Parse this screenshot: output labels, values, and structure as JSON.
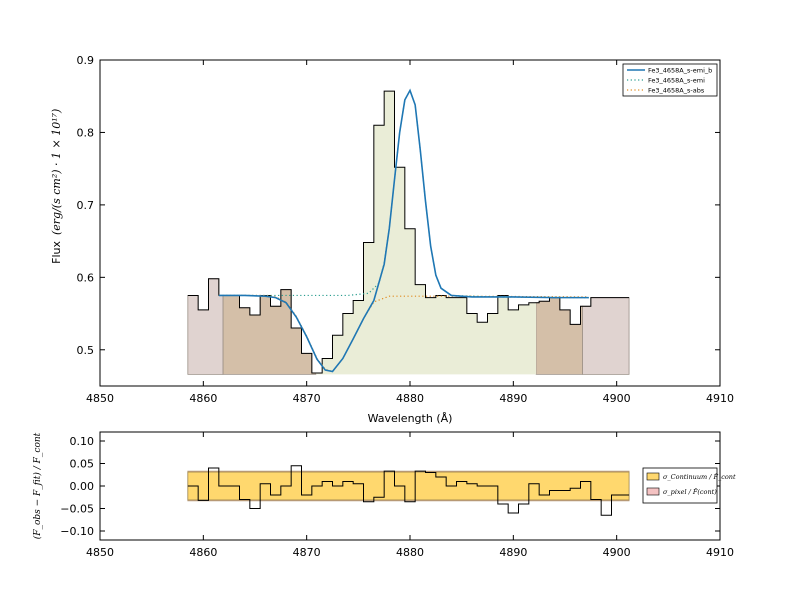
{
  "chart_data": [
    {
      "type": "line",
      "xlabel": "Wavelength (Å)",
      "ylabel": "Flux",
      "ylabel_unit": "(erg/(s cm²) · 1 × 10¹⁷)",
      "xlim": [
        4850,
        4910
      ],
      "ylim": [
        0.45,
        0.9
      ],
      "xticks": [
        "4850",
        "4860",
        "4870",
        "4880",
        "4890",
        "4900",
        "4910"
      ],
      "yticks": [
        "0.5",
        "0.6",
        "0.7",
        "0.8",
        "0.9"
      ],
      "grid": false,
      "legend": {
        "position": "top-right",
        "entries": [
          "Fe3_4658A_s-emi_b",
          "Fe3_4658A_s-emi",
          "Fe3_4658A_s-abs"
        ]
      },
      "continuum_regions": [
        {
          "x0": 4858.5,
          "x1": 4861.9,
          "color": "#e0d3d0"
        },
        {
          "x0": 4861.9,
          "x1": 4870.9,
          "color": "#d4bfa8"
        },
        {
          "x0": 4870.9,
          "x1": 4892.2,
          "color": "#eaedd7"
        },
        {
          "x0": 4892.2,
          "x1": 4896.7,
          "color": "#d4bfa8"
        },
        {
          "x0": 4896.7,
          "x1": 4901.2,
          "color": "#e0d3d0"
        }
      ],
      "observed_step": {
        "edges": [
          4858.5,
          4859.5,
          4860.5,
          4861.5,
          4862.5,
          4863.5,
          4864.5,
          4865.5,
          4866.5,
          4867.5,
          4868.5,
          4869.5,
          4870.5,
          4871.5,
          4872.5,
          4873.5,
          4874.5,
          4875.5,
          4876.5,
          4877.5,
          4878.5,
          4879.5,
          4880.5,
          4881.5,
          4882.5,
          4883.5,
          4884.5,
          4885.5,
          4886.5,
          4887.5,
          4888.5,
          4889.5,
          4890.5,
          4891.5,
          4892.5,
          4893.5,
          4894.5,
          4895.5,
          4896.5,
          4897.5,
          4898.5,
          4899.5,
          4900.5,
          4901.2
        ],
        "values": [
          0.575,
          0.555,
          0.598,
          0.575,
          0.575,
          0.558,
          0.548,
          0.575,
          0.56,
          0.583,
          0.53,
          0.495,
          0.468,
          0.488,
          0.52,
          0.55,
          0.568,
          0.648,
          0.81,
          0.857,
          0.752,
          0.667,
          0.59,
          0.572,
          0.575,
          0.572,
          0.572,
          0.55,
          0.538,
          0.55,
          0.575,
          0.555,
          0.562,
          0.565,
          0.567,
          0.572,
          0.555,
          0.535,
          0.56,
          0.572,
          0.572,
          0.572,
          0.572
        ]
      },
      "series": [
        {
          "name": "Fe3_4658A_s-emi_b",
          "style": "solid",
          "color": "#1f77b4",
          "x": [
            4861.5,
            4864,
            4866,
            4867,
            4868,
            4869,
            4870,
            4871,
            4871.8,
            4872.5,
            4873.5,
            4874.5,
            4875.5,
            4876.5,
            4877.5,
            4878,
            4878.5,
            4879,
            4879.5,
            4880,
            4880.5,
            4881,
            4881.5,
            4882,
            4882.5,
            4883,
            4884,
            4886,
            4890,
            4894,
            4897.3
          ],
          "y": [
            0.575,
            0.575,
            0.574,
            0.572,
            0.565,
            0.545,
            0.518,
            0.487,
            0.472,
            0.47,
            0.488,
            0.515,
            0.543,
            0.568,
            0.618,
            0.668,
            0.735,
            0.8,
            0.845,
            0.858,
            0.838,
            0.775,
            0.705,
            0.643,
            0.603,
            0.585,
            0.575,
            0.573,
            0.573,
            0.572,
            0.572
          ]
        },
        {
          "name": "Fe3_4658A_s-emi",
          "style": "dotted",
          "color": "#2a9d8f",
          "x": [
            4861.5,
            4866,
            4870,
            4874,
            4876,
            4877,
            4877.5,
            4878,
            4878.5,
            4879,
            4879.5,
            4880,
            4880.5,
            4881,
            4881.5,
            4882,
            4882.5,
            4883,
            4884,
            4888,
            4897.3
          ],
          "y": [
            0.575,
            0.575,
            0.575,
            0.575,
            0.578,
            0.592,
            0.62,
            0.668,
            0.735,
            0.8,
            0.845,
            0.858,
            0.838,
            0.775,
            0.705,
            0.643,
            0.603,
            0.585,
            0.575,
            0.573,
            0.572
          ]
        },
        {
          "name": "Fe3_4658A_s-abs",
          "style": "dotted",
          "color": "#e08a1e",
          "x": [
            4861.5,
            4866,
            4867,
            4868,
            4869,
            4870,
            4871,
            4871.8,
            4872.5,
            4873.5,
            4874.5,
            4875.5,
            4876.5,
            4878,
            4884,
            4897.3
          ],
          "y": [
            0.575,
            0.575,
            0.573,
            0.566,
            0.546,
            0.519,
            0.488,
            0.473,
            0.47,
            0.488,
            0.515,
            0.543,
            0.566,
            0.574,
            0.574,
            0.573
          ]
        }
      ]
    },
    {
      "type": "line",
      "ylabel": "(F_obs − F_fit) / F_cont",
      "xlim": [
        4850,
        4910
      ],
      "ylim": [
        -0.12,
        0.12
      ],
      "xticks": [
        "4850",
        "4860",
        "4870",
        "4880",
        "4890",
        "4900",
        "4910"
      ],
      "yticks": [
        "0.10",
        "0.05",
        "0.00",
        "−0.05",
        "−0.10"
      ],
      "grid": false,
      "legend": {
        "position": "right",
        "entries": [
          "σ_Continuum / F̄_cont",
          "σ_pixel / F̄(cont)"
        ]
      },
      "error_band": {
        "x0": 4858.5,
        "x1": 4901.2,
        "sigma_cont": 0.031,
        "sigma_pixel": 0.033,
        "colors": [
          "#ffd86e",
          "#f4c2c2"
        ]
      },
      "residual_step": {
        "edges": [
          4858.5,
          4859.5,
          4860.5,
          4861.5,
          4862.5,
          4863.5,
          4864.5,
          4865.5,
          4866.5,
          4867.5,
          4868.5,
          4869.5,
          4870.5,
          4871.5,
          4872.5,
          4873.5,
          4874.5,
          4875.5,
          4876.5,
          4877.5,
          4878.5,
          4879.5,
          4880.5,
          4881.5,
          4882.5,
          4883.5,
          4884.5,
          4885.5,
          4886.5,
          4887.5,
          4888.5,
          4889.5,
          4890.5,
          4891.5,
          4892.5,
          4893.5,
          4894.5,
          4895.5,
          4896.5,
          4897.5,
          4898.5,
          4899.5,
          4900.5,
          4901.2
        ],
        "values": [
          0.0,
          -0.032,
          0.04,
          0.0,
          0.0,
          -0.03,
          -0.05,
          0.005,
          -0.02,
          0.0,
          0.045,
          -0.02,
          0.0,
          0.01,
          0.0,
          0.01,
          0.005,
          -0.035,
          -0.025,
          0.033,
          0.0,
          -0.035,
          0.033,
          0.03,
          0.02,
          0.0,
          0.01,
          0.005,
          0.0,
          0.0,
          -0.04,
          -0.06,
          -0.04,
          0.005,
          -0.02,
          -0.01,
          -0.01,
          -0.005,
          0.01,
          -0.03,
          -0.065,
          -0.02,
          -0.02
        ]
      }
    }
  ]
}
